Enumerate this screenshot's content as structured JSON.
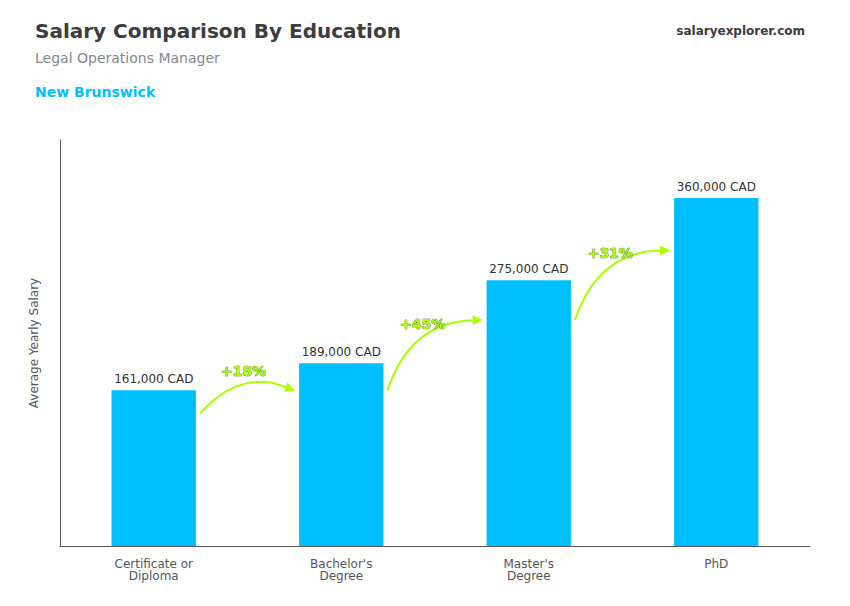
{
  "chart_data": {
    "type": "bar",
    "title": "Salary Comparison By Education",
    "subtitle": "Legal Operations Manager",
    "location": "New Brunswick",
    "watermark": "salaryexplorer.com",
    "ylabel": "Average Yearly Salary",
    "categories": [
      "Certificate or\nDiploma",
      "Bachelor's\nDegree",
      "Master's\nDegree",
      "PhD"
    ],
    "values": [
      161000,
      189000,
      275000,
      360000
    ],
    "value_labels": [
      "161,000 CAD",
      "189,000 CAD",
      "275,000 CAD",
      "360,000 CAD"
    ],
    "data_labels": true,
    "color": "#00bfff",
    "annotations": [
      {
        "text": "+18%",
        "color": "#aaff00"
      },
      {
        "text": "+45%",
        "color": "#aaff00"
      },
      {
        "text": "+31%",
        "color": "#aaff00"
      }
    ],
    "ylim": [
      0,
      420000
    ],
    "tick_labels": "x",
    "grid": false
  }
}
